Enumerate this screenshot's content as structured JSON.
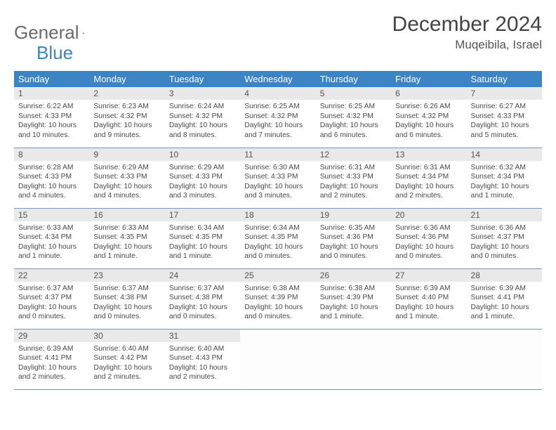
{
  "logo": {
    "text1": "General",
    "text2": "Blue"
  },
  "title": "December 2024",
  "location": "Muqeibila, Israel",
  "colors": {
    "header_bg": "#3d84c4",
    "header_fg": "#ffffff",
    "daynum_bg": "#e9e9e9",
    "row_border": "#7b99b5",
    "body_bg": "#ffffff"
  },
  "day_names": [
    "Sunday",
    "Monday",
    "Tuesday",
    "Wednesday",
    "Thursday",
    "Friday",
    "Saturday"
  ],
  "days": [
    {
      "n": "1",
      "sr": "Sunrise: 6:22 AM",
      "ss": "Sunset: 4:33 PM",
      "dl": "Daylight: 10 hours and 10 minutes."
    },
    {
      "n": "2",
      "sr": "Sunrise: 6:23 AM",
      "ss": "Sunset: 4:32 PM",
      "dl": "Daylight: 10 hours and 9 minutes."
    },
    {
      "n": "3",
      "sr": "Sunrise: 6:24 AM",
      "ss": "Sunset: 4:32 PM",
      "dl": "Daylight: 10 hours and 8 minutes."
    },
    {
      "n": "4",
      "sr": "Sunrise: 6:25 AM",
      "ss": "Sunset: 4:32 PM",
      "dl": "Daylight: 10 hours and 7 minutes."
    },
    {
      "n": "5",
      "sr": "Sunrise: 6:25 AM",
      "ss": "Sunset: 4:32 PM",
      "dl": "Daylight: 10 hours and 6 minutes."
    },
    {
      "n": "6",
      "sr": "Sunrise: 6:26 AM",
      "ss": "Sunset: 4:32 PM",
      "dl": "Daylight: 10 hours and 6 minutes."
    },
    {
      "n": "7",
      "sr": "Sunrise: 6:27 AM",
      "ss": "Sunset: 4:33 PM",
      "dl": "Daylight: 10 hours and 5 minutes."
    },
    {
      "n": "8",
      "sr": "Sunrise: 6:28 AM",
      "ss": "Sunset: 4:33 PM",
      "dl": "Daylight: 10 hours and 4 minutes."
    },
    {
      "n": "9",
      "sr": "Sunrise: 6:29 AM",
      "ss": "Sunset: 4:33 PM",
      "dl": "Daylight: 10 hours and 4 minutes."
    },
    {
      "n": "10",
      "sr": "Sunrise: 6:29 AM",
      "ss": "Sunset: 4:33 PM",
      "dl": "Daylight: 10 hours and 3 minutes."
    },
    {
      "n": "11",
      "sr": "Sunrise: 6:30 AM",
      "ss": "Sunset: 4:33 PM",
      "dl": "Daylight: 10 hours and 3 minutes."
    },
    {
      "n": "12",
      "sr": "Sunrise: 6:31 AM",
      "ss": "Sunset: 4:33 PM",
      "dl": "Daylight: 10 hours and 2 minutes."
    },
    {
      "n": "13",
      "sr": "Sunrise: 6:31 AM",
      "ss": "Sunset: 4:34 PM",
      "dl": "Daylight: 10 hours and 2 minutes."
    },
    {
      "n": "14",
      "sr": "Sunrise: 6:32 AM",
      "ss": "Sunset: 4:34 PM",
      "dl": "Daylight: 10 hours and 1 minute."
    },
    {
      "n": "15",
      "sr": "Sunrise: 6:33 AM",
      "ss": "Sunset: 4:34 PM",
      "dl": "Daylight: 10 hours and 1 minute."
    },
    {
      "n": "16",
      "sr": "Sunrise: 6:33 AM",
      "ss": "Sunset: 4:35 PM",
      "dl": "Daylight: 10 hours and 1 minute."
    },
    {
      "n": "17",
      "sr": "Sunrise: 6:34 AM",
      "ss": "Sunset: 4:35 PM",
      "dl": "Daylight: 10 hours and 1 minute."
    },
    {
      "n": "18",
      "sr": "Sunrise: 6:34 AM",
      "ss": "Sunset: 4:35 PM",
      "dl": "Daylight: 10 hours and 0 minutes."
    },
    {
      "n": "19",
      "sr": "Sunrise: 6:35 AM",
      "ss": "Sunset: 4:36 PM",
      "dl": "Daylight: 10 hours and 0 minutes."
    },
    {
      "n": "20",
      "sr": "Sunrise: 6:36 AM",
      "ss": "Sunset: 4:36 PM",
      "dl": "Daylight: 10 hours and 0 minutes."
    },
    {
      "n": "21",
      "sr": "Sunrise: 6:36 AM",
      "ss": "Sunset: 4:37 PM",
      "dl": "Daylight: 10 hours and 0 minutes."
    },
    {
      "n": "22",
      "sr": "Sunrise: 6:37 AM",
      "ss": "Sunset: 4:37 PM",
      "dl": "Daylight: 10 hours and 0 minutes."
    },
    {
      "n": "23",
      "sr": "Sunrise: 6:37 AM",
      "ss": "Sunset: 4:38 PM",
      "dl": "Daylight: 10 hours and 0 minutes."
    },
    {
      "n": "24",
      "sr": "Sunrise: 6:37 AM",
      "ss": "Sunset: 4:38 PM",
      "dl": "Daylight: 10 hours and 0 minutes."
    },
    {
      "n": "25",
      "sr": "Sunrise: 6:38 AM",
      "ss": "Sunset: 4:39 PM",
      "dl": "Daylight: 10 hours and 0 minutes."
    },
    {
      "n": "26",
      "sr": "Sunrise: 6:38 AM",
      "ss": "Sunset: 4:39 PM",
      "dl": "Daylight: 10 hours and 1 minute."
    },
    {
      "n": "27",
      "sr": "Sunrise: 6:39 AM",
      "ss": "Sunset: 4:40 PM",
      "dl": "Daylight: 10 hours and 1 minute."
    },
    {
      "n": "28",
      "sr": "Sunrise: 6:39 AM",
      "ss": "Sunset: 4:41 PM",
      "dl": "Daylight: 10 hours and 1 minute."
    },
    {
      "n": "29",
      "sr": "Sunrise: 6:39 AM",
      "ss": "Sunset: 4:41 PM",
      "dl": "Daylight: 10 hours and 2 minutes."
    },
    {
      "n": "30",
      "sr": "Sunrise: 6:40 AM",
      "ss": "Sunset: 4:42 PM",
      "dl": "Daylight: 10 hours and 2 minutes."
    },
    {
      "n": "31",
      "sr": "Sunrise: 6:40 AM",
      "ss": "Sunset: 4:43 PM",
      "dl": "Daylight: 10 hours and 2 minutes."
    }
  ]
}
